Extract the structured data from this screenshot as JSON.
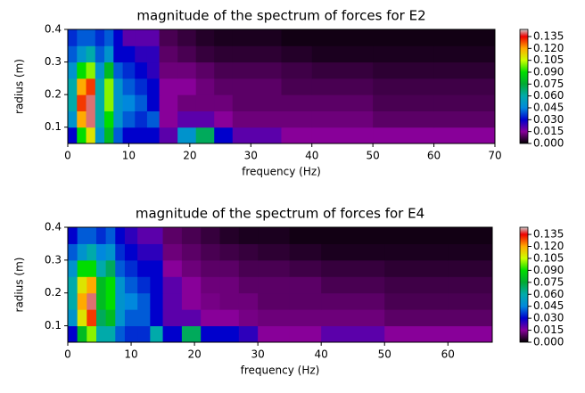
{
  "chart_data": [
    {
      "type": "heatmap",
      "title": "magnitude of the spectrum of forces for E2",
      "x_label": "frequency (Hz)",
      "y_label": "radius (m)",
      "x": [
        0,
        1.5,
        3,
        4.5,
        6,
        7.5,
        9,
        11,
        13,
        15,
        18,
        21,
        24,
        27,
        30,
        35,
        40,
        50,
        60,
        70
      ],
      "y": [
        0.05,
        0.1,
        0.15,
        0.2,
        0.25,
        0.3,
        0.35,
        0.4
      ],
      "z": [
        [
          0.03,
          0.09,
          0.11,
          0.05,
          0.08,
          0.04,
          0.03,
          0.03,
          0.03,
          0.02,
          0.05,
          0.07,
          0.03,
          0.02,
          0.02,
          0.015,
          0.015,
          0.015,
          0.015
        ],
        [
          0.05,
          0.12,
          0.14,
          0.06,
          0.09,
          0.05,
          0.04,
          0.035,
          0.04,
          0.015,
          0.02,
          0.02,
          0.015,
          0.012,
          0.012,
          0.012,
          0.012,
          0.01,
          0.01
        ],
        [
          0.06,
          0.13,
          0.14,
          0.06,
          0.1,
          0.05,
          0.045,
          0.04,
          0.03,
          0.015,
          0.012,
          0.012,
          0.012,
          0.01,
          0.01,
          0.01,
          0.01,
          0.008,
          0.008
        ],
        [
          0.06,
          0.12,
          0.13,
          0.06,
          0.1,
          0.05,
          0.04,
          0.035,
          0.03,
          0.015,
          0.015,
          0.012,
          0.01,
          0.01,
          0.01,
          0.008,
          0.008,
          0.007,
          0.007
        ],
        [
          0.05,
          0.09,
          0.1,
          0.05,
          0.08,
          0.04,
          0.035,
          0.03,
          0.025,
          0.012,
          0.012,
          0.01,
          0.008,
          0.008,
          0.008,
          0.007,
          0.006,
          0.005,
          0.005
        ],
        [
          0.04,
          0.05,
          0.06,
          0.04,
          0.05,
          0.03,
          0.03,
          0.025,
          0.025,
          0.01,
          0.008,
          0.006,
          0.005,
          0.005,
          0.005,
          0.004,
          0.003,
          0.003,
          0.003
        ],
        [
          0.035,
          0.04,
          0.04,
          0.035,
          0.04,
          0.03,
          0.02,
          0.02,
          0.02,
          0.008,
          0.006,
          0.004,
          0.003,
          0.003,
          0.003,
          0.002,
          0.002,
          0.002,
          0.002
        ]
      ],
      "xlim": [
        0,
        70
      ],
      "ylim": [
        0.05,
        0.4
      ],
      "xticks": [
        0,
        10,
        20,
        30,
        40,
        50,
        60,
        70
      ],
      "yticks": [
        0.1,
        0.2,
        0.3,
        0.4
      ],
      "clim": [
        0,
        0.144
      ],
      "colorbar_ticks": [
        {
          "value": 0,
          "label": "0.000"
        },
        {
          "value": 0.015,
          "label": "0.015"
        },
        {
          "value": 0.03,
          "label": "0.030"
        },
        {
          "value": 0.045,
          "label": "0.045"
        },
        {
          "value": 0.06,
          "label": "0.060"
        },
        {
          "value": 0.075,
          "label": "0.075"
        },
        {
          "value": 0.09,
          "label": "0.090"
        },
        {
          "value": 0.105,
          "label": "0.105"
        },
        {
          "value": 0.12,
          "label": "0.120"
        },
        {
          "value": 0.135,
          "label": "0.135"
        }
      ],
      "colorbar_colors": [
        "#000000",
        "#880099",
        "#0000cc",
        "#0088dd",
        "#00aaaa",
        "#00aa33",
        "#00dd00",
        "#ccff00",
        "#ffaa00",
        "#ee0000",
        "#cccccc"
      ]
    },
    {
      "type": "heatmap",
      "title": "magnitude of the spectrum of forces for E4",
      "x_label": "frequency (Hz)",
      "y_label": "radius (m)",
      "x": [
        0,
        1.5,
        3,
        4.5,
        6,
        7.5,
        9,
        11,
        13,
        15,
        18,
        21,
        24,
        27,
        30,
        35,
        40,
        50,
        60,
        67
      ],
      "y": [
        0.05,
        0.1,
        0.15,
        0.2,
        0.25,
        0.3,
        0.35,
        0.4
      ],
      "z": [
        [
          0.03,
          0.08,
          0.1,
          0.06,
          0.06,
          0.04,
          0.035,
          0.035,
          0.06,
          0.03,
          0.07,
          0.03,
          0.03,
          0.025,
          0.015,
          0.015,
          0.02,
          0.015,
          0.015
        ],
        [
          0.05,
          0.11,
          0.13,
          0.07,
          0.08,
          0.05,
          0.04,
          0.04,
          0.03,
          0.02,
          0.02,
          0.015,
          0.015,
          0.013,
          0.012,
          0.012,
          0.012,
          0.01,
          0.01
        ],
        [
          0.06,
          0.12,
          0.14,
          0.08,
          0.09,
          0.05,
          0.045,
          0.04,
          0.03,
          0.02,
          0.015,
          0.013,
          0.012,
          0.012,
          0.01,
          0.01,
          0.01,
          0.008,
          0.008
        ],
        [
          0.06,
          0.11,
          0.12,
          0.08,
          0.09,
          0.05,
          0.04,
          0.035,
          0.03,
          0.02,
          0.015,
          0.012,
          0.012,
          0.01,
          0.01,
          0.01,
          0.008,
          0.007,
          0.007
        ],
        [
          0.05,
          0.09,
          0.09,
          0.06,
          0.07,
          0.04,
          0.035,
          0.03,
          0.03,
          0.015,
          0.012,
          0.01,
          0.01,
          0.008,
          0.008,
          0.007,
          0.006,
          0.005,
          0.005
        ],
        [
          0.04,
          0.05,
          0.06,
          0.045,
          0.05,
          0.035,
          0.03,
          0.025,
          0.025,
          0.012,
          0.01,
          0.008,
          0.007,
          0.006,
          0.005,
          0.004,
          0.003,
          0.003,
          0.003
        ],
        [
          0.03,
          0.04,
          0.04,
          0.035,
          0.04,
          0.03,
          0.025,
          0.02,
          0.02,
          0.01,
          0.008,
          0.006,
          0.004,
          0.003,
          0.003,
          0.002,
          0.002,
          0.002,
          0.002
        ]
      ],
      "xlim": [
        0,
        67
      ],
      "ylim": [
        0.05,
        0.4
      ],
      "xticks": [
        0,
        10,
        20,
        30,
        40,
        50,
        60
      ],
      "yticks": [
        0.1,
        0.2,
        0.3,
        0.4
      ],
      "clim": [
        0,
        0.144
      ],
      "colorbar_ticks": [
        {
          "value": 0,
          "label": "0.000"
        },
        {
          "value": 0.015,
          "label": "0.015"
        },
        {
          "value": 0.03,
          "label": "0.030"
        },
        {
          "value": 0.045,
          "label": "0.045"
        },
        {
          "value": 0.06,
          "label": "0.060"
        },
        {
          "value": 0.075,
          "label": "0.075"
        },
        {
          "value": 0.09,
          "label": "0.090"
        },
        {
          "value": 0.105,
          "label": "0.105"
        },
        {
          "value": 0.12,
          "label": "0.120"
        },
        {
          "value": 0.135,
          "label": "0.135"
        }
      ],
      "colorbar_colors": [
        "#000000",
        "#880099",
        "#0000cc",
        "#0088dd",
        "#00aaaa",
        "#00aa33",
        "#00dd00",
        "#ccff00",
        "#ffaa00",
        "#ee0000",
        "#cccccc"
      ]
    }
  ]
}
